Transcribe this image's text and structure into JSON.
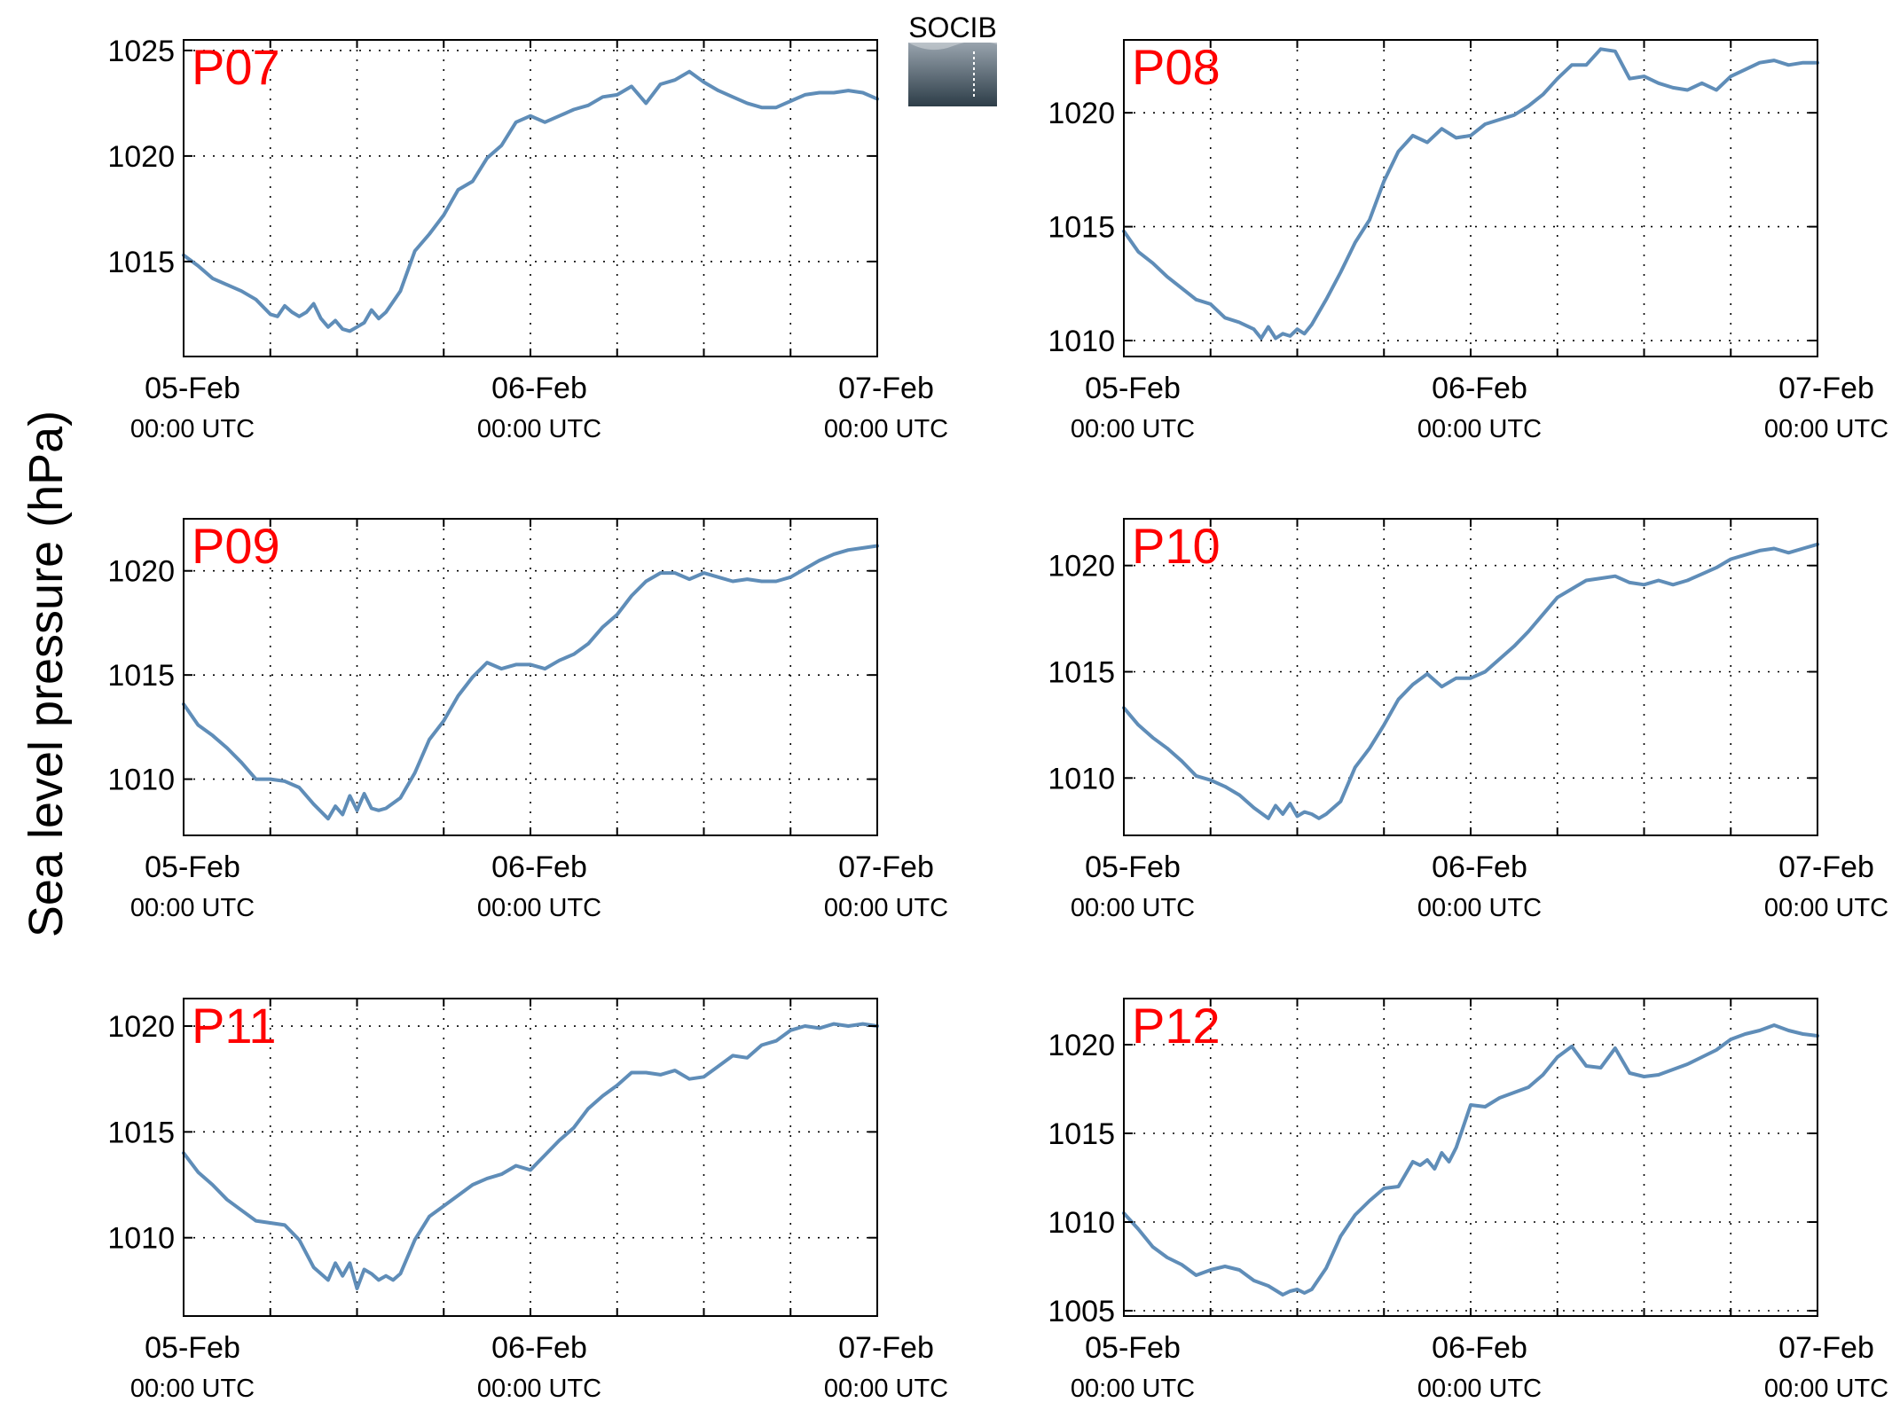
{
  "figure": {
    "ylabel": "Sea level pressure (hPa)",
    "logo_text": "SOCIB"
  },
  "chart_data": [
    {
      "type": "line",
      "title": "P07",
      "xlim": [
        0,
        48
      ],
      "ylim": [
        1010.5,
        1025.5
      ],
      "yticks": [
        1015,
        1020,
        1025
      ],
      "xticks": [
        0,
        24,
        48
      ],
      "xtick_labels": [
        "05-Feb",
        "06-Feb",
        "07-Feb"
      ],
      "xtick_sublabel": "00:00 UTC",
      "grid": true,
      "series": [
        {
          "x": [
            0,
            1,
            2,
            3,
            4,
            5,
            6,
            6.5,
            7,
            7.5,
            8,
            8.5,
            9,
            9.5,
            10,
            10.5,
            11,
            11.5,
            12,
            12.5,
            13,
            13.5,
            14,
            15,
            16,
            17,
            18,
            19,
            20,
            21,
            22,
            23,
            24,
            25,
            26,
            27,
            28,
            29,
            30,
            31,
            32,
            33,
            34,
            35,
            36,
            37,
            38,
            39,
            40,
            41,
            42,
            43,
            44,
            45,
            46,
            47,
            48
          ],
          "y": [
            1015.3,
            1014.8,
            1014.2,
            1013.9,
            1013.6,
            1013.2,
            1012.5,
            1012.4,
            1012.9,
            1012.6,
            1012.4,
            1012.6,
            1013.0,
            1012.3,
            1011.9,
            1012.2,
            1011.8,
            1011.7,
            1011.9,
            1012.1,
            1012.7,
            1012.3,
            1012.6,
            1013.6,
            1015.5,
            1016.3,
            1017.2,
            1018.4,
            1018.8,
            1019.9,
            1020.5,
            1021.6,
            1021.9,
            1021.6,
            1021.9,
            1022.2,
            1022.4,
            1022.8,
            1022.9,
            1023.3,
            1022.5,
            1023.4,
            1023.6,
            1024.0,
            1023.5,
            1023.1,
            1022.8,
            1022.5,
            1022.3,
            1022.3,
            1022.6,
            1022.9,
            1023.0,
            1023.0,
            1023.1,
            1023.0,
            1022.7
          ]
        }
      ]
    },
    {
      "type": "line",
      "title": "P08",
      "xlim": [
        0,
        48
      ],
      "ylim": [
        1009.3,
        1023.2
      ],
      "yticks": [
        1010,
        1015,
        1020
      ],
      "xticks": [
        0,
        24,
        48
      ],
      "xtick_labels": [
        "05-Feb",
        "06-Feb",
        "07-Feb"
      ],
      "xtick_sublabel": "00:00 UTC",
      "grid": true,
      "series": [
        {
          "x": [
            0,
            1,
            2,
            3,
            4,
            5,
            6,
            7,
            8,
            9,
            9.5,
            10,
            10.5,
            11,
            11.5,
            12,
            12.5,
            13,
            14,
            15,
            16,
            17,
            18,
            19,
            20,
            21,
            22,
            23,
            24,
            25,
            26,
            27,
            28,
            29,
            30,
            31,
            32,
            33,
            34,
            35,
            36,
            37,
            38,
            39,
            40,
            41,
            42,
            43,
            44,
            45,
            46,
            47,
            48
          ],
          "y": [
            1014.8,
            1013.9,
            1013.4,
            1012.8,
            1012.3,
            1011.8,
            1011.6,
            1011.0,
            1010.8,
            1010.5,
            1010.1,
            1010.6,
            1010.1,
            1010.3,
            1010.2,
            1010.5,
            1010.3,
            1010.7,
            1011.8,
            1013.0,
            1014.3,
            1015.3,
            1017.0,
            1018.3,
            1019.0,
            1018.7,
            1019.3,
            1018.9,
            1019.0,
            1019.5,
            1019.7,
            1019.9,
            1020.3,
            1020.8,
            1021.5,
            1022.1,
            1022.1,
            1022.8,
            1022.7,
            1021.5,
            1021.6,
            1021.3,
            1021.1,
            1021.0,
            1021.3,
            1021.0,
            1021.6,
            1021.9,
            1022.2,
            1022.3,
            1022.1,
            1022.2,
            1022.2
          ]
        }
      ]
    },
    {
      "type": "line",
      "title": "P09",
      "xlim": [
        0,
        48
      ],
      "ylim": [
        1007.3,
        1022.5
      ],
      "yticks": [
        1010,
        1015,
        1020
      ],
      "xticks": [
        0,
        24,
        48
      ],
      "xtick_labels": [
        "05-Feb",
        "06-Feb",
        "07-Feb"
      ],
      "xtick_sublabel": "00:00 UTC",
      "grid": true,
      "series": [
        {
          "x": [
            0,
            1,
            2,
            3,
            4,
            5,
            6,
            7,
            8,
            9,
            10,
            10.5,
            11,
            11.5,
            12,
            12.5,
            13,
            13.5,
            14,
            15,
            16,
            17,
            18,
            19,
            20,
            21,
            22,
            23,
            24,
            25,
            26,
            27,
            28,
            29,
            30,
            31,
            32,
            33,
            34,
            35,
            36,
            37,
            38,
            39,
            40,
            41,
            42,
            43,
            44,
            45,
            46,
            47,
            48
          ],
          "y": [
            1013.6,
            1012.6,
            1012.1,
            1011.5,
            1010.8,
            1010.0,
            1010.0,
            1009.9,
            1009.6,
            1008.8,
            1008.1,
            1008.7,
            1008.3,
            1009.2,
            1008.5,
            1009.3,
            1008.6,
            1008.5,
            1008.6,
            1009.1,
            1010.3,
            1011.9,
            1012.8,
            1014.0,
            1014.9,
            1015.6,
            1015.3,
            1015.5,
            1015.5,
            1015.3,
            1015.7,
            1016.0,
            1016.5,
            1017.3,
            1017.9,
            1018.8,
            1019.5,
            1019.9,
            1019.9,
            1019.6,
            1019.9,
            1019.7,
            1019.5,
            1019.6,
            1019.5,
            1019.5,
            1019.7,
            1020.1,
            1020.5,
            1020.8,
            1021.0,
            1021.1,
            1021.2
          ]
        }
      ]
    },
    {
      "type": "line",
      "title": "P10",
      "xlim": [
        0,
        48
      ],
      "ylim": [
        1007.3,
        1022.2
      ],
      "yticks": [
        1010,
        1015,
        1020
      ],
      "xticks": [
        0,
        24,
        48
      ],
      "xtick_labels": [
        "05-Feb",
        "06-Feb",
        "07-Feb"
      ],
      "xtick_sublabel": "00:00 UTC",
      "grid": true,
      "series": [
        {
          "x": [
            0,
            1,
            2,
            3,
            4,
            5,
            6,
            7,
            8,
            9,
            10,
            10.5,
            11,
            11.5,
            12,
            12.5,
            13,
            13.5,
            14,
            15,
            16,
            17,
            18,
            19,
            20,
            21,
            22,
            23,
            24,
            25,
            26,
            27,
            28,
            29,
            30,
            31,
            32,
            33,
            34,
            35,
            36,
            37,
            38,
            39,
            40,
            41,
            42,
            43,
            44,
            45,
            46,
            47,
            48
          ],
          "y": [
            1013.3,
            1012.5,
            1011.9,
            1011.4,
            1010.8,
            1010.1,
            1009.9,
            1009.6,
            1009.2,
            1008.6,
            1008.1,
            1008.7,
            1008.3,
            1008.8,
            1008.2,
            1008.4,
            1008.3,
            1008.1,
            1008.3,
            1008.9,
            1010.5,
            1011.4,
            1012.5,
            1013.7,
            1014.4,
            1014.9,
            1014.3,
            1014.7,
            1014.7,
            1015.0,
            1015.6,
            1016.2,
            1016.9,
            1017.7,
            1018.5,
            1018.9,
            1019.3,
            1019.4,
            1019.5,
            1019.2,
            1019.1,
            1019.3,
            1019.1,
            1019.3,
            1019.6,
            1019.9,
            1020.3,
            1020.5,
            1020.7,
            1020.8,
            1020.6,
            1020.8,
            1021.0
          ]
        }
      ]
    },
    {
      "type": "line",
      "title": "P11",
      "xlim": [
        0,
        48
      ],
      "ylim": [
        1006.3,
        1021.3
      ],
      "yticks": [
        1010,
        1015,
        1020
      ],
      "xticks": [
        0,
        24,
        48
      ],
      "xtick_labels": [
        "05-Feb",
        "06-Feb",
        "07-Feb"
      ],
      "xtick_sublabel": "00:00 UTC",
      "grid": true,
      "series": [
        {
          "x": [
            0,
            1,
            2,
            3,
            4,
            5,
            6,
            7,
            8,
            9,
            10,
            10.5,
            11,
            11.5,
            12,
            12.5,
            13,
            13.5,
            14,
            14.5,
            15,
            16,
            17,
            18,
            19,
            20,
            21,
            22,
            23,
            24,
            25,
            26,
            27,
            28,
            29,
            30,
            31,
            32,
            33,
            34,
            35,
            36,
            37,
            38,
            39,
            40,
            41,
            42,
            43,
            44,
            45,
            46,
            47,
            48
          ],
          "y": [
            1014.0,
            1013.1,
            1012.5,
            1011.8,
            1011.3,
            1010.8,
            1010.7,
            1010.6,
            1009.9,
            1008.6,
            1008.0,
            1008.8,
            1008.2,
            1008.8,
            1007.6,
            1008.5,
            1008.3,
            1008.0,
            1008.2,
            1008.0,
            1008.3,
            1009.9,
            1011.0,
            1011.5,
            1012.0,
            1012.5,
            1012.8,
            1013.0,
            1013.4,
            1013.2,
            1013.9,
            1014.6,
            1015.2,
            1016.1,
            1016.7,
            1017.2,
            1017.8,
            1017.8,
            1017.7,
            1017.9,
            1017.5,
            1017.6,
            1018.1,
            1018.6,
            1018.5,
            1019.1,
            1019.3,
            1019.8,
            1020.0,
            1019.9,
            1020.1,
            1020.0,
            1020.1,
            1020.0
          ]
        }
      ]
    },
    {
      "type": "line",
      "title": "P12",
      "xlim": [
        0,
        48
      ],
      "ylim": [
        1004.7,
        1022.6
      ],
      "yticks": [
        1005,
        1010,
        1015,
        1020
      ],
      "xticks": [
        0,
        24,
        48
      ],
      "xtick_labels": [
        "05-Feb",
        "06-Feb",
        "07-Feb"
      ],
      "xtick_sublabel": "00:00 UTC",
      "grid": true,
      "series": [
        {
          "x": [
            0,
            1,
            2,
            3,
            4,
            5,
            6,
            7,
            8,
            9,
            10,
            11,
            11.5,
            12,
            12.5,
            13,
            14,
            15,
            16,
            17,
            18,
            19,
            20,
            20.5,
            21,
            21.5,
            22,
            22.5,
            23,
            24,
            25,
            26,
            27,
            28,
            29,
            30,
            31,
            32,
            33,
            34,
            35,
            36,
            37,
            38,
            39,
            40,
            41,
            42,
            43,
            44,
            45,
            46,
            47,
            48
          ],
          "y": [
            1010.5,
            1009.6,
            1008.6,
            1008.0,
            1007.6,
            1007.0,
            1007.3,
            1007.5,
            1007.3,
            1006.7,
            1006.4,
            1005.9,
            1006.1,
            1006.2,
            1006.0,
            1006.2,
            1007.4,
            1009.2,
            1010.4,
            1011.2,
            1011.9,
            1012.0,
            1013.4,
            1013.2,
            1013.5,
            1013.0,
            1013.9,
            1013.4,
            1014.2,
            1016.6,
            1016.5,
            1017.0,
            1017.3,
            1017.6,
            1018.3,
            1019.3,
            1019.9,
            1018.8,
            1018.7,
            1019.8,
            1018.4,
            1018.2,
            1018.3,
            1018.6,
            1018.9,
            1019.3,
            1019.7,
            1020.3,
            1020.6,
            1020.8,
            1021.1,
            1020.8,
            1020.6,
            1020.5
          ]
        }
      ]
    }
  ],
  "style": {
    "line_color": "#5f8db8",
    "label_color": "#ff0000",
    "logo_text_color": "#4fc7d8",
    "logo_gradient_top": "#98a3ad",
    "logo_gradient_bottom": "#2d3d48"
  }
}
